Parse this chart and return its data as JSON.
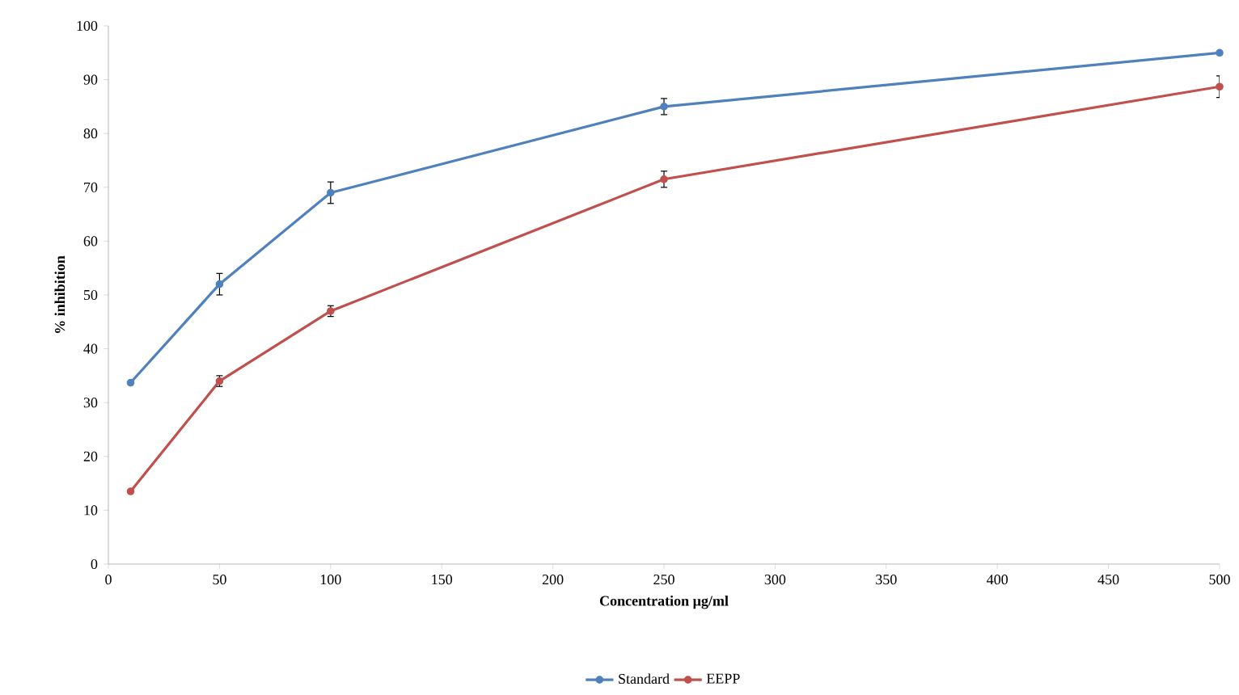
{
  "chart_data": {
    "type": "line",
    "xlabel": "Concentration µg/ml",
    "ylabel": "% inhibition",
    "x": [
      10,
      50,
      100,
      250,
      500
    ],
    "series": [
      {
        "name": "Standard",
        "color": "#4f81bd",
        "values": [
          33.7,
          52,
          69,
          85,
          95
        ],
        "errors": [
          null,
          2,
          2,
          1.5,
          null
        ]
      },
      {
        "name": "EEPP",
        "color": "#c0504d",
        "values": [
          13.5,
          34,
          47,
          71.5,
          88.7
        ],
        "errors": [
          null,
          1,
          1,
          1.5,
          2
        ]
      }
    ],
    "xlim": [
      0,
      500
    ],
    "xticks": [
      0,
      50,
      100,
      150,
      200,
      250,
      300,
      350,
      400,
      450,
      500
    ],
    "ylim": [
      0,
      100
    ],
    "yticks": [
      0,
      10,
      20,
      30,
      40,
      50,
      60,
      70,
      80,
      90,
      100
    ],
    "grid": false,
    "legend": "bottom",
    "marker": "circle",
    "line_style": "solid"
  }
}
